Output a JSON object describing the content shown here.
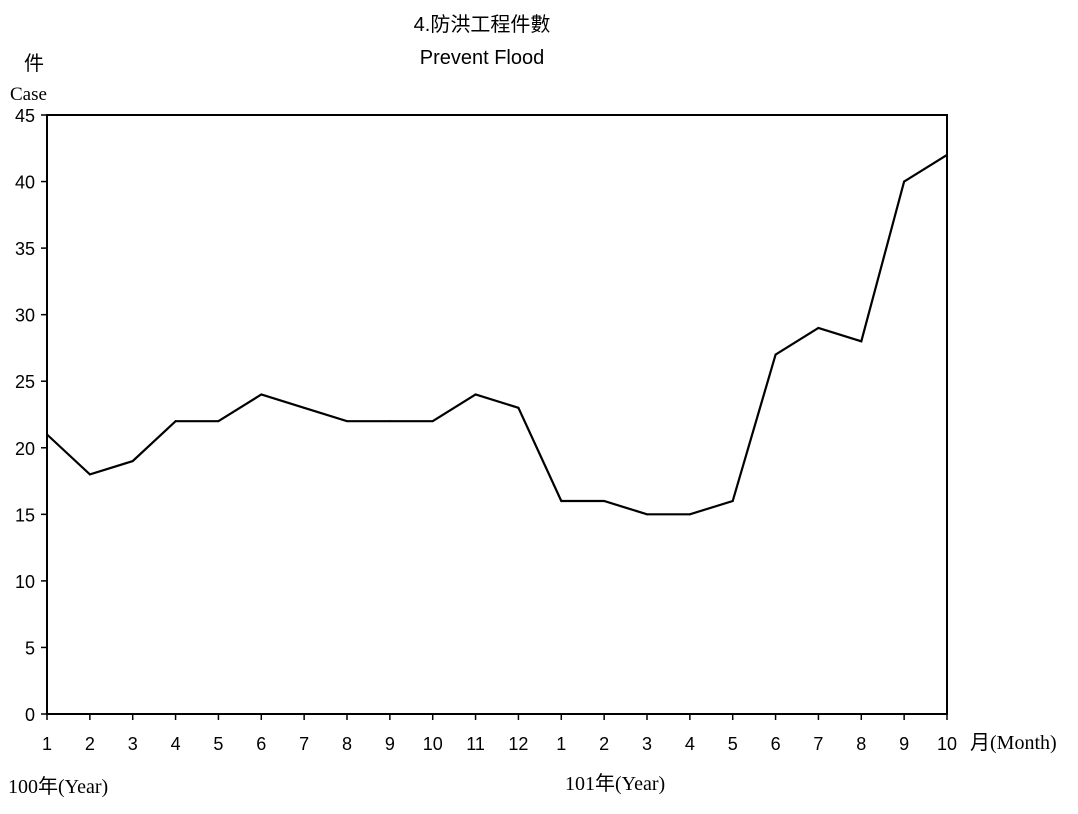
{
  "chart_data": {
    "type": "line",
    "title": "4.防洪工程件數",
    "subtitle": "Prevent Flood",
    "ylabel_zh": "件",
    "ylabel_en": "Case",
    "xlabel": "月(Month)",
    "year_labels": [
      "100年(Year)",
      "101年(Year)"
    ],
    "ylim": [
      0,
      45
    ],
    "yticks": [
      "0",
      "5",
      "10",
      "15",
      "20",
      "25",
      "30",
      "35",
      "40",
      "45"
    ],
    "categories": [
      "1",
      "2",
      "3",
      "4",
      "5",
      "6",
      "7",
      "8",
      "9",
      "10",
      "11",
      "12",
      "1",
      "2",
      "3",
      "4",
      "5",
      "6",
      "7",
      "8",
      "9",
      "10"
    ],
    "series": [
      {
        "values": [
          21,
          18,
          19,
          22,
          22,
          24,
          23,
          22,
          22,
          22,
          24,
          23,
          16,
          16,
          15,
          15,
          16,
          27,
          29,
          28,
          40,
          42
        ],
        "color": "#000000"
      }
    ],
    "grid": false
  }
}
